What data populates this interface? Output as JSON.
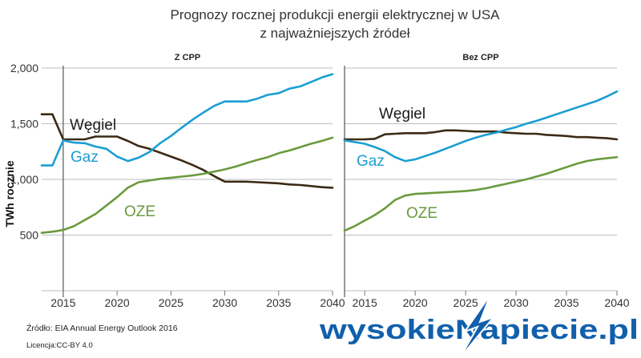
{
  "title_line1": "Prognozy rocznej produkcji energii elektrycznej w USA",
  "title_line2": "z najważniejszych źródeł",
  "source": "Źródło: EIA Annual Energy Outlook 2016",
  "license": "Licencja:CC-BY 4.0",
  "logo_text": "wysokieNapiecie.pl",
  "colors": {
    "coal": "#3b2a14",
    "gas": "#1a9ed4",
    "renewables": "#6a9a3d",
    "logo": "#1160ab"
  },
  "chart_data": [
    {
      "type": "line",
      "title": "Z CPP",
      "ylabel": "TWh rocznie",
      "xlim": [
        2013,
        2040
      ],
      "ylim": [
        0,
        2000
      ],
      "xticks": [
        2015,
        2020,
        2025,
        2030,
        2035,
        2040
      ],
      "xtick_labels": [
        "2015",
        "2020",
        "2025",
        "2030",
        "2035",
        "2040"
      ],
      "yticks": [
        500,
        1000,
        1500,
        2000
      ],
      "ytick_labels": [
        "500",
        "1,000",
        "1,500",
        "2,000"
      ],
      "x": [
        2013,
        2014,
        2015,
        2016,
        2017,
        2018,
        2019,
        2020,
        2021,
        2022,
        2023,
        2024,
        2025,
        2026,
        2027,
        2028,
        2029,
        2030,
        2031,
        2032,
        2033,
        2034,
        2035,
        2036,
        2037,
        2038,
        2039,
        2040
      ],
      "series": [
        {
          "name": "Węgiel",
          "key": "coal",
          "values": [
            1585,
            1585,
            1360,
            1360,
            1360,
            1385,
            1385,
            1385,
            1345,
            1300,
            1275,
            1240,
            1205,
            1170,
            1130,
            1085,
            1030,
            980,
            980,
            980,
            975,
            970,
            965,
            955,
            950,
            940,
            930,
            925
          ]
        },
        {
          "name": "Gaz",
          "key": "gas",
          "values": [
            1125,
            1125,
            1350,
            1330,
            1325,
            1295,
            1275,
            1205,
            1165,
            1195,
            1245,
            1325,
            1390,
            1465,
            1535,
            1600,
            1660,
            1700,
            1700,
            1700,
            1725,
            1760,
            1775,
            1815,
            1835,
            1875,
            1915,
            1945
          ]
        },
        {
          "name": "OZE",
          "key": "renewables",
          "values": [
            520,
            530,
            545,
            580,
            635,
            690,
            765,
            840,
            925,
            975,
            990,
            1005,
            1015,
            1025,
            1035,
            1050,
            1070,
            1090,
            1115,
            1145,
            1175,
            1200,
            1235,
            1260,
            1290,
            1320,
            1345,
            1375
          ]
        }
      ]
    },
    {
      "type": "line",
      "title": "Bez CPP",
      "xlim": [
        2013,
        2040
      ],
      "ylim": [
        0,
        2000
      ],
      "xticks": [
        2015,
        2020,
        2025,
        2030,
        2035,
        2040
      ],
      "xtick_labels": [
        "2015",
        "2020",
        "2025",
        "2030",
        "2035",
        "2040"
      ],
      "yticks": [
        500,
        1000,
        1500,
        2000
      ],
      "x": [
        2013,
        2014,
        2015,
        2016,
        2017,
        2018,
        2019,
        2020,
        2021,
        2022,
        2023,
        2024,
        2025,
        2026,
        2027,
        2028,
        2029,
        2030,
        2031,
        2032,
        2033,
        2034,
        2035,
        2036,
        2037,
        2038,
        2039,
        2040
      ],
      "series": [
        {
          "name": "Węgiel",
          "key": "coal",
          "values": [
            1360,
            1360,
            1360,
            1365,
            1405,
            1410,
            1415,
            1415,
            1415,
            1425,
            1440,
            1440,
            1435,
            1430,
            1430,
            1430,
            1420,
            1415,
            1410,
            1410,
            1400,
            1395,
            1390,
            1380,
            1380,
            1375,
            1370,
            1360
          ]
        },
        {
          "name": "Gaz",
          "key": "gas",
          "values": [
            1350,
            1335,
            1320,
            1290,
            1255,
            1200,
            1165,
            1180,
            1210,
            1240,
            1275,
            1310,
            1345,
            1375,
            1400,
            1420,
            1445,
            1470,
            1500,
            1525,
            1555,
            1585,
            1615,
            1645,
            1675,
            1705,
            1745,
            1790
          ]
        },
        {
          "name": "OZE",
          "key": "renewables",
          "values": [
            540,
            580,
            630,
            680,
            740,
            815,
            855,
            870,
            875,
            880,
            885,
            890,
            895,
            905,
            920,
            940,
            960,
            980,
            1000,
            1025,
            1050,
            1080,
            1110,
            1140,
            1165,
            1180,
            1190,
            1200
          ]
        }
      ]
    }
  ]
}
